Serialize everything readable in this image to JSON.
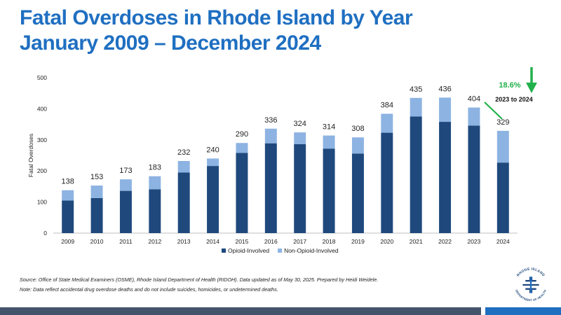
{
  "title": {
    "line1": "Fatal Overdoses in Rhode Island by Year",
    "line2": "January 2009 – December 2024"
  },
  "chart_data": {
    "type": "bar",
    "stacked": true,
    "categories": [
      "2009",
      "2010",
      "2011",
      "2012",
      "2013",
      "2014",
      "2015",
      "2016",
      "2017",
      "2018",
      "2019",
      "2020",
      "2021",
      "2022",
      "2023",
      "2024"
    ],
    "series": [
      {
        "name": "Opioid-Involved",
        "color": "#1f497d",
        "values": [
          105,
          113,
          136,
          141,
          195,
          216,
          258,
          289,
          286,
          272,
          256,
          323,
          375,
          358,
          346,
          227
        ]
      },
      {
        "name": "Non-Opioid-Involved",
        "color": "#8db3e2",
        "values": [
          33,
          40,
          37,
          42,
          37,
          24,
          32,
          47,
          38,
          42,
          52,
          61,
          60,
          78,
          58,
          102
        ]
      }
    ],
    "totals": [
      "138",
      "153",
      "173",
      "183",
      "232",
      "240",
      "290",
      "336",
      "324",
      "314",
      "308",
      "384",
      "435",
      "436",
      "404",
      "329"
    ],
    "ylabel": "Fatal Overdoses",
    "ylim": [
      0,
      500
    ],
    "yticks": [
      "0",
      "100",
      "200",
      "300",
      "400",
      "500"
    ],
    "legend_position": "bottom",
    "annotation": {
      "percent": "18.6%",
      "label": "2023 to 2024",
      "color": "#22b14c"
    }
  },
  "footnotes": {
    "source": "Source: Office of State Medical Examiners (OSME), Rhode Island Department of Health (RIDOH). Data updated as of May 30, 2025. Prepared by Heidi Weidele.",
    "note": "Note: Data reflect accidental drug overdose deaths and do not include suicides, homicides, or undetermined deaths."
  },
  "logo": {
    "top_text": "RHODE ISLAND",
    "bottom_text": "DEPARTMENT OF HEALTH"
  },
  "colors": {
    "title": "#1f6fc1",
    "bar_dark": "#44546a",
    "bar_blue": "#1f6fc1"
  }
}
